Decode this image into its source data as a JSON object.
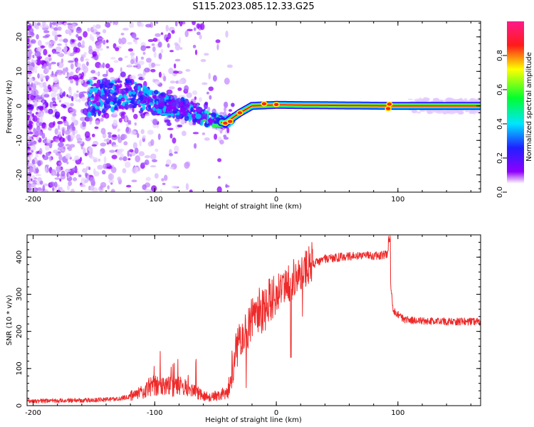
{
  "title": "S115.2023.085.12.33.G25",
  "chart_data": [
    {
      "type": "heatmap",
      "xlabel": "Height of straight line (km)",
      "ylabel": "Frequency (Hz)",
      "xlim": [
        -205,
        168
      ],
      "ylim": [
        -25,
        24.5
      ],
      "xticks": [
        -200,
        -100,
        0,
        100
      ],
      "yticks": [
        -20,
        -10,
        0,
        10,
        20
      ],
      "colorbar": {
        "label": "Normalized spectral amplitude",
        "range": [
          0,
          1
        ],
        "ticks": [
          0.0,
          0.2,
          0.4,
          0.6,
          0.8
        ]
      },
      "ridge": [
        {
          "x": -150,
          "y": 2
        },
        {
          "x": -125,
          "y": 4
        },
        {
          "x": -100,
          "y": 1
        },
        {
          "x": -75,
          "y": -1
        },
        {
          "x": -55,
          "y": -4
        },
        {
          "x": -42,
          "y": -5
        },
        {
          "x": -30,
          "y": -2
        },
        {
          "x": -20,
          "y": 0
        },
        {
          "x": 0,
          "y": 0.3
        },
        {
          "x": 100,
          "y": 0
        },
        {
          "x": 168,
          "y": 0
        }
      ]
    },
    {
      "type": "line",
      "xlabel": "Height of straight line (km)",
      "ylabel": "SNR (10 * v/v)",
      "xlim": [
        -205,
        168
      ],
      "ylim": [
        0,
        460
      ],
      "xticks": [
        -200,
        -100,
        0,
        100
      ],
      "yticks": [
        0,
        100,
        200,
        300,
        400
      ],
      "color": "#ee2a2a",
      "envelope": [
        {
          "x": -205,
          "y": 12
        },
        {
          "x": -150,
          "y": 14
        },
        {
          "x": -130,
          "y": 18
        },
        {
          "x": -115,
          "y": 28
        },
        {
          "x": -100,
          "y": 55
        },
        {
          "x": -90,
          "y": 48
        },
        {
          "x": -80,
          "y": 50
        },
        {
          "x": -70,
          "y": 40
        },
        {
          "x": -55,
          "y": 20
        },
        {
          "x": -40,
          "y": 35
        },
        {
          "x": -33,
          "y": 150
        },
        {
          "x": -20,
          "y": 230
        },
        {
          "x": -5,
          "y": 280
        },
        {
          "x": 10,
          "y": 320
        },
        {
          "x": 25,
          "y": 370
        },
        {
          "x": 40,
          "y": 395
        },
        {
          "x": 60,
          "y": 400
        },
        {
          "x": 92,
          "y": 405
        },
        {
          "x": 96,
          "y": 255
        },
        {
          "x": 105,
          "y": 230
        },
        {
          "x": 130,
          "y": 226
        },
        {
          "x": 168,
          "y": 225
        }
      ]
    }
  ]
}
